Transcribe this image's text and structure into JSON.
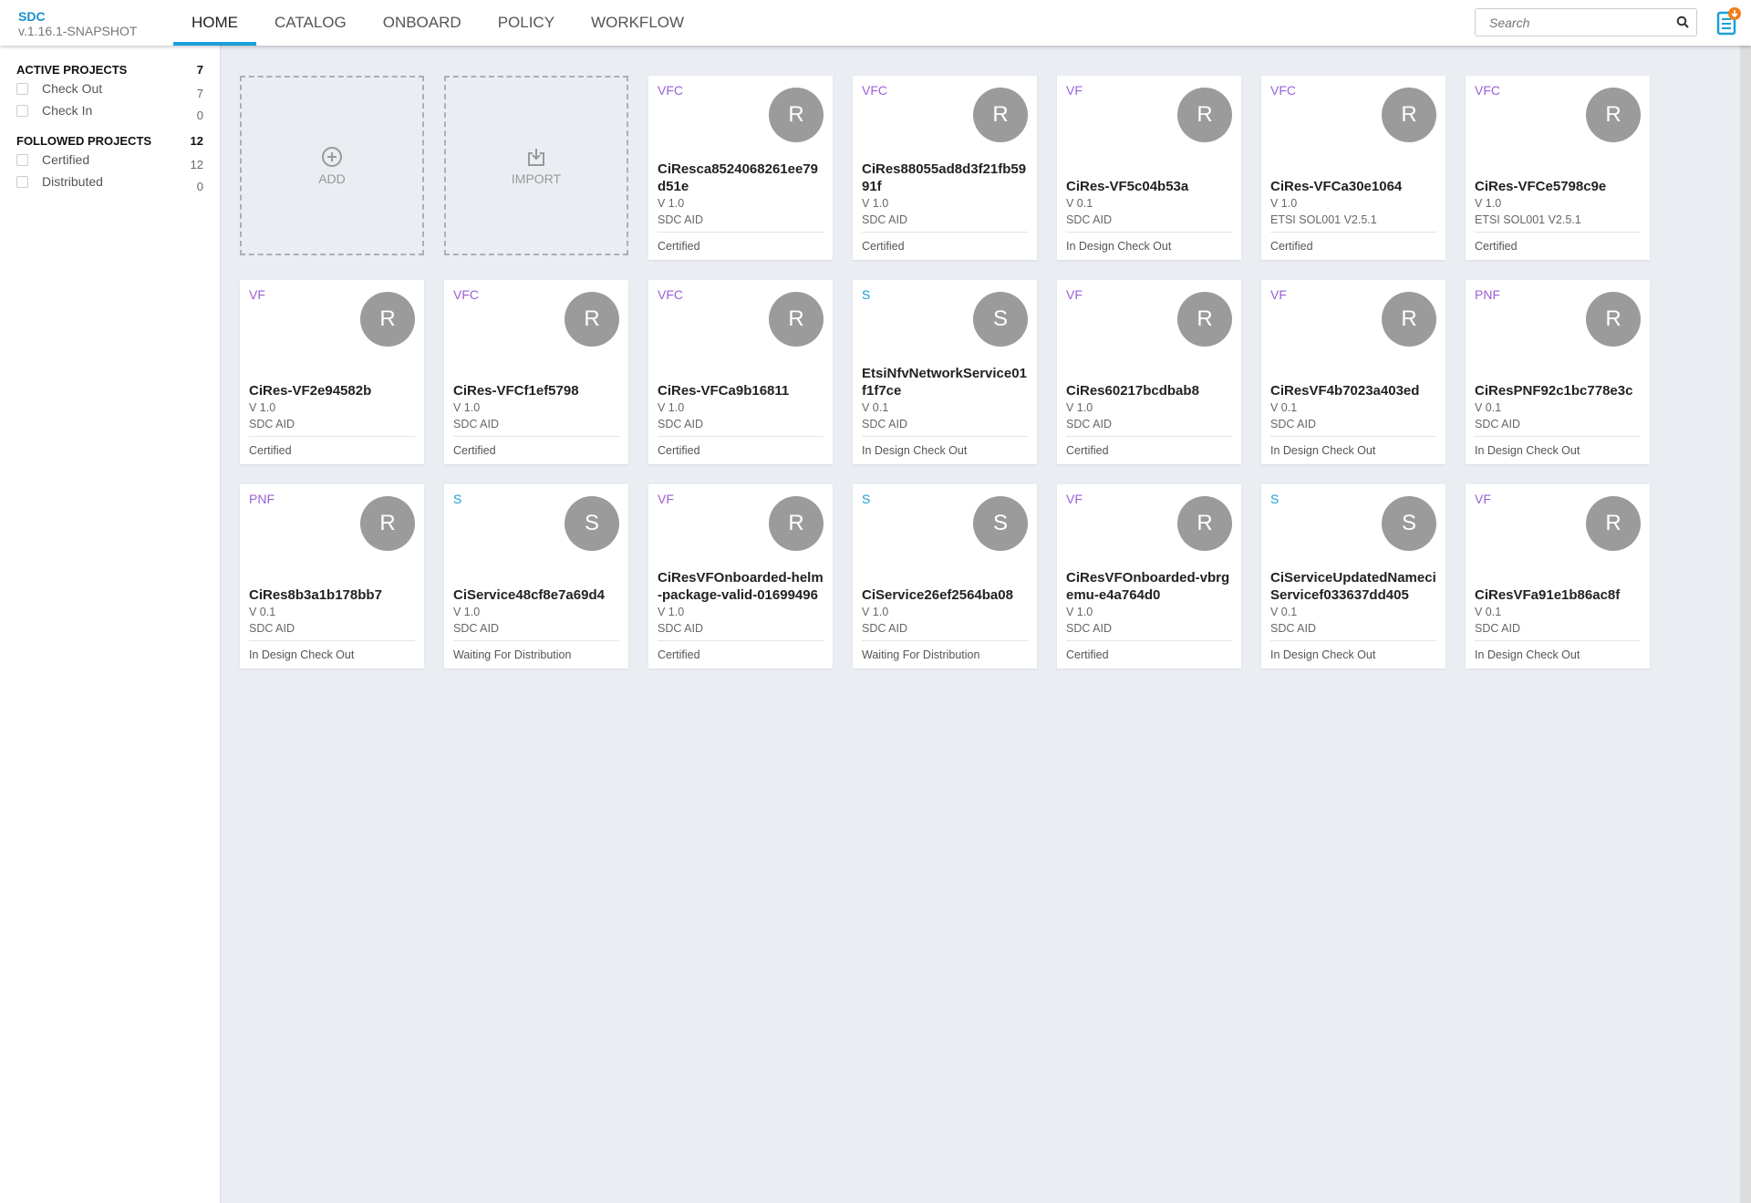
{
  "app": {
    "name": "SDC",
    "version": "v.1.16.1-SNAPSHOT"
  },
  "nav": {
    "tabs": [
      {
        "label": "HOME",
        "active": true
      },
      {
        "label": "CATALOG"
      },
      {
        "label": "ONBOARD"
      },
      {
        "label": "POLICY"
      },
      {
        "label": "WORKFLOW"
      }
    ]
  },
  "search": {
    "placeholder": "Search",
    "icon": "search-icon"
  },
  "notifications": {
    "icon": "document-download-icon",
    "colors": {
      "doc": "#1a9fd9",
      "badge": "#f07d1a"
    }
  },
  "sidebar": {
    "active": {
      "title": "ACTIVE PROJECTS",
      "count": "7",
      "items": [
        {
          "label": "Check Out",
          "count": "7"
        },
        {
          "label": "Check In",
          "count": "0"
        }
      ]
    },
    "followed": {
      "title": "FOLLOWED PROJECTS",
      "count": "12",
      "items": [
        {
          "label": "Certified",
          "count": "12"
        },
        {
          "label": "Distributed",
          "count": "0"
        }
      ]
    }
  },
  "actions": {
    "add": "ADD",
    "import": "IMPORT"
  },
  "colors": {
    "resource_type": "#9b5fd6",
    "service_type": "#1a9fd9",
    "avatar": "#9b9b9b",
    "accent": "#1a9fd9"
  },
  "cards": [
    {
      "type": "VFC",
      "avatar": "R",
      "name": "CiResca8524068261ee79d51e",
      "version": "V 1.0",
      "category": "SDC AID",
      "status": "Certified"
    },
    {
      "type": "VFC",
      "avatar": "R",
      "name": "CiRes88055ad8d3f21fb5991f",
      "version": "V 1.0",
      "category": "SDC AID",
      "status": "Certified"
    },
    {
      "type": "VF",
      "avatar": "R",
      "name": "CiRes-VF5c04b53a",
      "version": "V 0.1",
      "category": "SDC AID",
      "status": "In Design Check Out"
    },
    {
      "type": "VFC",
      "avatar": "R",
      "name": "CiRes-VFCa30e1064",
      "version": "V 1.0",
      "category": "ETSI SOL001 V2.5.1",
      "status": "Certified"
    },
    {
      "type": "VFC",
      "avatar": "R",
      "name": "CiRes-VFCe5798c9e",
      "version": "V 1.0",
      "category": "ETSI SOL001 V2.5.1",
      "status": "Certified"
    },
    {
      "type": "VF",
      "avatar": "R",
      "name": "CiRes-VF2e94582b",
      "version": "V 1.0",
      "category": "SDC AID",
      "status": "Certified"
    },
    {
      "type": "VFC",
      "avatar": "R",
      "name": "CiRes-VFCf1ef5798",
      "version": "V 1.0",
      "category": "SDC AID",
      "status": "Certified"
    },
    {
      "type": "VFC",
      "avatar": "R",
      "name": "CiRes-VFCa9b16811",
      "version": "V 1.0",
      "category": "SDC AID",
      "status": "Certified"
    },
    {
      "type": "S",
      "avatar": "S",
      "name": "EtsiNfvNetworkService01f1f7ce",
      "version": "V 0.1",
      "category": "SDC AID",
      "status": "In Design Check Out"
    },
    {
      "type": "VF",
      "avatar": "R",
      "name": "CiRes60217bcdbab8",
      "version": "V 1.0",
      "category": "SDC AID",
      "status": "Certified"
    },
    {
      "type": "VF",
      "avatar": "R",
      "name": "CiResVF4b7023a403ed",
      "version": "V 0.1",
      "category": "SDC AID",
      "status": "In Design Check Out"
    },
    {
      "type": "PNF",
      "avatar": "R",
      "name": "CiResPNF92c1bc778e3c",
      "version": "V 0.1",
      "category": "SDC AID",
      "status": "In Design Check Out"
    },
    {
      "type": "PNF",
      "avatar": "R",
      "name": "CiRes8b3a1b178bb7",
      "version": "V 0.1",
      "category": "SDC AID",
      "status": "In Design Check Out"
    },
    {
      "type": "S",
      "avatar": "S",
      "name": "CiService48cf8e7a69d4",
      "version": "V 1.0",
      "category": "SDC AID",
      "status": "Waiting For Distribution"
    },
    {
      "type": "VF",
      "avatar": "R",
      "name": "CiResVFOnboarded-helm-package-valid-01699496",
      "version": "V 1.0",
      "category": "SDC AID",
      "status": "Certified"
    },
    {
      "type": "S",
      "avatar": "S",
      "name": "CiService26ef2564ba08",
      "version": "V 1.0",
      "category": "SDC AID",
      "status": "Waiting For Distribution"
    },
    {
      "type": "VF",
      "avatar": "R",
      "name": "CiResVFOnboarded-vbrgemu-e4a764d0",
      "version": "V 1.0",
      "category": "SDC AID",
      "status": "Certified"
    },
    {
      "type": "S",
      "avatar": "S",
      "name": "CiServiceUpdatedNameciServicef033637dd405",
      "version": "V 0.1",
      "category": "SDC AID",
      "status": "In Design Check Out"
    },
    {
      "type": "VF",
      "avatar": "R",
      "name": "CiResVFa91e1b86ac8f",
      "version": "V 0.1",
      "category": "SDC AID",
      "status": "In Design Check Out"
    }
  ]
}
